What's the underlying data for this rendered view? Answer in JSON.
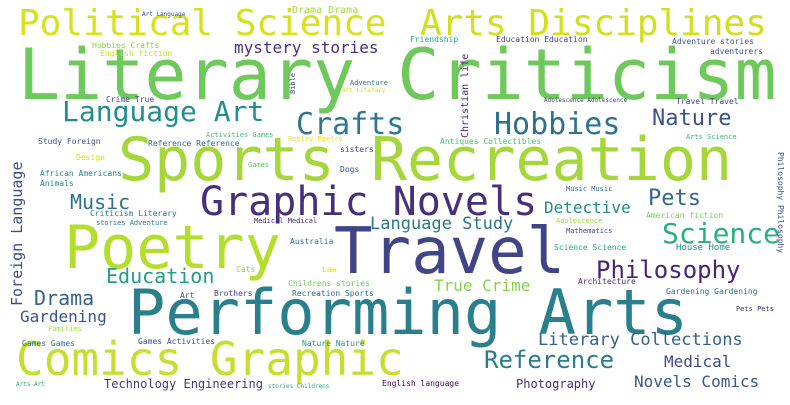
{
  "words": [
    {
      "text": "Literary Criticism",
      "color": "#6cc95a"
    },
    {
      "text": "Sports Recreation",
      "color": "#a5d63a"
    },
    {
      "text": "Performing Arts",
      "color": "#2a7f8d"
    },
    {
      "text": "Comics Graphic",
      "color": "#c6df2f"
    },
    {
      "text": "Poetry",
      "color": "#b4de2c"
    },
    {
      "text": "Travel",
      "color": "#414487"
    },
    {
      "text": "Political Science",
      "color": "#d8e219"
    },
    {
      "text": "Arts Disciplines",
      "color": "#d0e11c"
    },
    {
      "text": "Graphic Novels",
      "color": "#462f7c"
    },
    {
      "text": "Language Art",
      "color": "#218f8d"
    },
    {
      "text": "Crafts",
      "color": "#2a788e"
    },
    {
      "text": "Hobbies",
      "color": "#2c728e"
    },
    {
      "text": "Nature",
      "color": "#3b528b"
    },
    {
      "text": "Philosophy",
      "color": "#482475"
    },
    {
      "text": "Science",
      "color": "#29af7f"
    },
    {
      "text": "Reference",
      "color": "#287c8e"
    },
    {
      "text": "Education",
      "color": "#1f9e89"
    },
    {
      "text": "Music",
      "color": "#2d708e"
    },
    {
      "text": "Pets",
      "color": "#31688e"
    },
    {
      "text": "Drama",
      "color": "#33638d"
    },
    {
      "text": "True Crime",
      "color": "#84d44b"
    },
    {
      "text": "Literary Collections",
      "color": "#35608d"
    },
    {
      "text": "Language Study",
      "color": "#2a768e"
    },
    {
      "text": "Detective",
      "color": "#238a8d"
    },
    {
      "text": "Gardening",
      "color": "#39568c"
    },
    {
      "text": "mystery stories",
      "color": "#46327e"
    },
    {
      "text": "Medical",
      "color": "#3e4989"
    },
    {
      "text": "Novels Comics",
      "color": "#375a8c"
    },
    {
      "text": "Foreign Language",
      "color": "#3e4c8a"
    },
    {
      "text": "Technology Engineering",
      "color": "#453781"
    },
    {
      "text": "Photography",
      "color": "#472d7b"
    },
    {
      "text": "Drama Drama",
      "color": "#a5db36"
    },
    {
      "text": "Art Language",
      "color": "#3f4788"
    },
    {
      "text": "Hobbies Crafts",
      "color": "#86d549"
    },
    {
      "text": "English fiction",
      "color": "#c2df23"
    },
    {
      "text": "Friendship",
      "color": "#1fa287"
    },
    {
      "text": "Education Education",
      "color": "#433e85"
    },
    {
      "text": "Adventure stories",
      "color": "#34618d"
    },
    {
      "text": "adventurers",
      "color": "#3b528b"
    },
    {
      "text": "Christian life",
      "color": "#481f70"
    },
    {
      "text": "Bible",
      "color": "#3f4788"
    },
    {
      "text": "Adventure",
      "color": "#2e6e8e"
    },
    {
      "text": "Art Literary",
      "color": "#dae319"
    },
    {
      "text": "Crime True",
      "color": "#414487"
    },
    {
      "text": "Adolescence Adolescence",
      "color": "#443983"
    },
    {
      "text": "Travel Travel",
      "color": "#3f4889"
    },
    {
      "text": "Arts Science",
      "color": "#35b779"
    },
    {
      "text": "Philosophy Philosophy",
      "color": "#3e4a89"
    },
    {
      "text": "Activities Games",
      "color": "#40bd72"
    },
    {
      "text": "Poetry Poetry",
      "color": "#e7e419"
    },
    {
      "text": "Study Foreign",
      "color": "#3b528b"
    },
    {
      "text": "Reference Reference",
      "color": "#2f6b8e"
    },
    {
      "text": "sisters",
      "color": "#414487"
    },
    {
      "text": "Antiques Collectibles",
      "color": "#4ac16d"
    },
    {
      "text": "Design",
      "color": "#d2e21b"
    },
    {
      "text": "African Americans",
      "color": "#238a8d"
    },
    {
      "text": "Games",
      "color": "#5ec962"
    },
    {
      "text": "Animals",
      "color": "#26828e"
    },
    {
      "text": "Dogs",
      "color": "#3b528b"
    },
    {
      "text": "Music Music",
      "color": "#2e6d8e"
    },
    {
      "text": "Criticism Literary",
      "color": "#2a788e"
    },
    {
      "text": "stories Adventure",
      "color": "#297b8e"
    },
    {
      "text": "Medical Medical",
      "color": "#472c7a"
    },
    {
      "text": "Mathematics",
      "color": "#414487"
    },
    {
      "text": "Adolescence",
      "color": "#9bd93c"
    },
    {
      "text": "American fiction",
      "color": "#7ad151"
    },
    {
      "text": "Science Science",
      "color": "#25ac82"
    },
    {
      "text": "House Home",
      "color": "#21918c"
    },
    {
      "text": "Australia",
      "color": "#2a788e"
    },
    {
      "text": "Cats",
      "color": "#8ed645"
    },
    {
      "text": "Law",
      "color": "#dde318"
    },
    {
      "text": "Architecture",
      "color": "#482878"
    },
    {
      "text": "Childrens stories",
      "color": "#6ccd5a"
    },
    {
      "text": "Brothers",
      "color": "#3f4788"
    },
    {
      "text": "Recreation Sports",
      "color": "#31688e"
    },
    {
      "text": "Art",
      "color": "#3e4c8a"
    },
    {
      "text": "Gardening Gardening",
      "color": "#2b758e"
    },
    {
      "text": "Families",
      "color": "#a0da39"
    },
    {
      "text": "Pets Pets",
      "color": "#46327e"
    },
    {
      "text": "Games Games",
      "color": "#2c728e"
    },
    {
      "text": "Games Activities",
      "color": "#3b528b"
    },
    {
      "text": "Nature Nature",
      "color": "#1e9b8a"
    },
    {
      "text": "Arts Art",
      "color": "#22a785"
    },
    {
      "text": "stories Childrens",
      "color": "#29af7f"
    },
    {
      "text": "English language",
      "color": "#440154"
    }
  ]
}
